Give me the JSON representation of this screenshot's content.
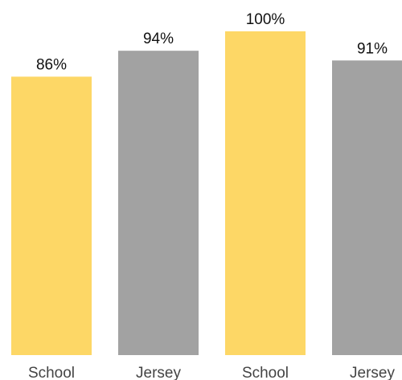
{
  "chart_data": {
    "type": "bar",
    "categories": [
      "School",
      "Jersey",
      "School",
      "Jersey"
    ],
    "values": [
      86,
      94,
      100,
      91
    ],
    "value_labels": [
      "86%",
      "94%",
      "100%",
      "91%"
    ],
    "unit": "%",
    "ylim": [
      0,
      100
    ],
    "grid": false,
    "legend": "none",
    "colors": [
      "#FDD766",
      "#A2A2A2",
      "#FDD766",
      "#A2A2A2"
    ]
  }
}
